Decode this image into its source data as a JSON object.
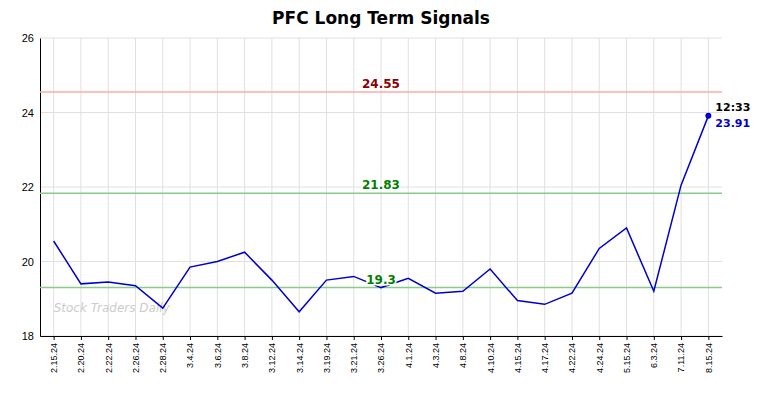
{
  "chart_data": {
    "type": "line",
    "title": "PFC Long Term Signals",
    "categories": [
      "2.15.24",
      "2.20.24",
      "2.22.24",
      "2.26.24",
      "2.28.24",
      "3.4.24",
      "3.6.24",
      "3.8.24",
      "3.12.24",
      "3.14.24",
      "3.19.24",
      "3.21.24",
      "3.26.24",
      "4.1.24",
      "4.3.24",
      "4.8.24",
      "4.10.24",
      "4.15.24",
      "4.17.24",
      "4.22.24",
      "4.24.24",
      "5.15.24",
      "6.3.24",
      "7.11.24",
      "8.15.24"
    ],
    "values": [
      20.55,
      19.4,
      19.45,
      19.35,
      18.75,
      19.85,
      20.0,
      20.25,
      19.5,
      18.65,
      19.5,
      19.6,
      19.3,
      19.55,
      19.15,
      19.2,
      19.8,
      18.95,
      18.85,
      19.15,
      20.35,
      20.9,
      19.2,
      22.05,
      23.91
    ],
    "color": "#0000cc",
    "ylim": [
      18,
      26
    ],
    "yticks": [
      18,
      20,
      22,
      24,
      26
    ],
    "grid": true,
    "reference_lines": [
      {
        "value": 24.55,
        "label": "24.55",
        "color": "#ffaaaa",
        "label_color": "darkred"
      },
      {
        "value": 21.83,
        "label": "21.83",
        "color": "#88cc88",
        "label_color": "green"
      },
      {
        "value": 19.3,
        "label": "19.3",
        "color": "#88cc88",
        "label_color": "green"
      }
    ],
    "annotations": [
      {
        "text": "12:33"
      },
      {
        "text": "23.91"
      }
    ],
    "watermark": "Stock Traders Daily"
  }
}
